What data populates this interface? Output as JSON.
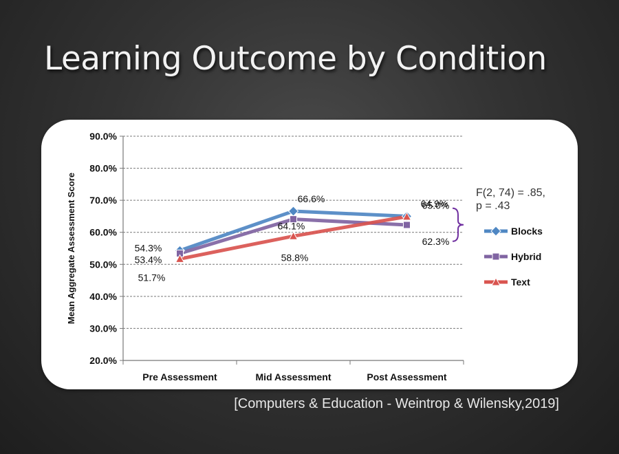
{
  "slide": {
    "title": "Learning Outcome by Condition",
    "citation": "[Computers & Education - Weintrop & Wilensky,2019]"
  },
  "colors": {
    "Blocks": "#4f87c3",
    "Hybrid": "#8064a2",
    "Text": "#d9544f",
    "bracket": "#7030a0"
  },
  "chart_data": {
    "type": "line",
    "title": "",
    "xlabel": "",
    "ylabel": "Mean Aggregate Assessment Score",
    "categories": [
      "Pre Assessment",
      "Mid Assessment",
      "Post Assessment"
    ],
    "ylim": [
      20,
      90
    ],
    "yticks": [
      "20.0%",
      "30.0%",
      "40.0%",
      "50.0%",
      "60.0%",
      "70.0%",
      "80.0%",
      "90.0%"
    ],
    "grid": true,
    "legend_position": "right",
    "series": [
      {
        "name": "Blocks",
        "marker": "diamond",
        "values": [
          54.3,
          66.6,
          65.0
        ],
        "labels": [
          "54.3%",
          "66.6%",
          "65.0%"
        ]
      },
      {
        "name": "Hybrid",
        "marker": "square",
        "values": [
          53.4,
          64.1,
          62.3
        ],
        "labels": [
          "53.4%",
          "64.1%",
          "62.3%"
        ]
      },
      {
        "name": "Text",
        "marker": "triangle",
        "values": [
          51.7,
          58.8,
          64.9
        ],
        "labels": [
          "51.7%",
          "58.8%",
          "64.9%"
        ]
      }
    ],
    "annotation": {
      "line1": "F(2, 74) = .85,",
      "line2": "p = .43"
    }
  }
}
